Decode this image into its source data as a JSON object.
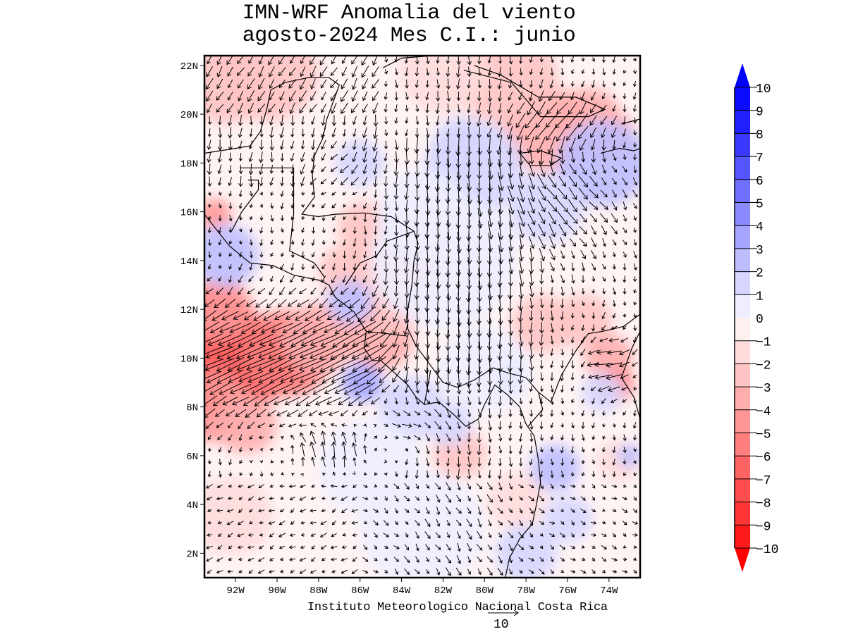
{
  "title": {
    "line1": "IMN-WRF Anomalia del viento",
    "line2": "agosto-2024 Mes C.I.: junio"
  },
  "map": {
    "lat_labels": [
      "2N",
      "4N",
      "6N",
      "8N",
      "10N",
      "12N",
      "14N",
      "16N",
      "18N",
      "20N",
      "22N"
    ],
    "lat_values": [
      2,
      4,
      6,
      8,
      10,
      12,
      14,
      16,
      18,
      20,
      22
    ],
    "lon_labels": [
      "92W",
      "90W",
      "88W",
      "86W",
      "84W",
      "82W",
      "80W",
      "78W",
      "76W",
      "74W"
    ],
    "lon_values": [
      -92,
      -90,
      -88,
      -86,
      -84,
      -82,
      -80,
      -78,
      -76,
      -74
    ],
    "lat_range": [
      1.0,
      22.4
    ],
    "lon_range": [
      -93.5,
      -72.5
    ]
  },
  "colorbar": {
    "levels": [
      "10",
      "9",
      "8",
      "7",
      "6",
      "5",
      "4",
      "3",
      "2",
      "1",
      "0",
      "-1",
      "-2",
      "-3",
      "-4",
      "-5",
      "-6",
      "-7",
      "-8",
      "-9",
      "-10"
    ],
    "colors_positive": [
      "#0a0aff",
      "#2020ff",
      "#3a3aff",
      "#5555ff",
      "#7070ff",
      "#8a8aff",
      "#a5a5ff",
      "#bebeff",
      "#d6d6ff",
      "#eeeeff"
    ],
    "colors_negative": [
      "#fff0f0",
      "#ffdcdc",
      "#ffc4c4",
      "#ffaeae",
      "#ff9696",
      "#ff7e7e",
      "#ff6464",
      "#ff4c4c",
      "#ff3434",
      "#ff1a1a"
    ],
    "arrow_top_color": "#0000ff",
    "arrow_bottom_color": "#ff0000"
  },
  "footer": {
    "credit": "Instituto Meteorologico Nacional Costa Rica",
    "reference_vector_value": "10"
  }
}
